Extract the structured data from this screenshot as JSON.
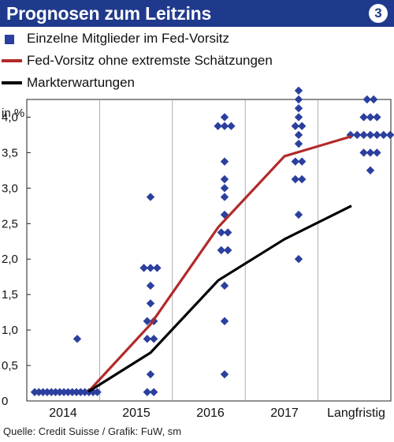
{
  "header": {
    "title": "Prognosen zum Leitzins",
    "badge": "3"
  },
  "legend": {
    "members": "Einzelne Mitglieder im Fed-Vorsitz",
    "trimmed": "Fed-Vorsitz ohne extremste Schätzungen",
    "market": "Markterwartungen"
  },
  "source": "Quelle: Credit Suisse / Grafik: FuW, sm",
  "colors": {
    "brand": "#1f3a8c",
    "dots": "#2b3f9e",
    "fed": "#b22a2a",
    "market": "#000000",
    "grid": "#999999"
  },
  "chart_data": {
    "type": "scatter",
    "title": "Prognosen zum Leitzins",
    "ylabel": "in %",
    "categories": [
      "2014",
      "2015",
      "2016",
      "2017",
      "Langfristig"
    ],
    "yticks": [
      "0",
      "0,5",
      "1,0",
      "1,5",
      "2,0",
      "2,5",
      "3,0",
      "3,5",
      "4,0"
    ],
    "ylim": [
      0,
      4.25
    ],
    "grid": "vertical",
    "series": [
      {
        "name": "Einzelne Mitglieder im Fed-Vorsitz",
        "kind": "points",
        "points": [
          {
            "category": "2014",
            "values": [
              0.125,
              0.125,
              0.125,
              0.125,
              0.125,
              0.125,
              0.125,
              0.125,
              0.125,
              0.125,
              0.125,
              0.125,
              0.125,
              0.125,
              0.125,
              0.125,
              0.875
            ]
          },
          {
            "category": "2015",
            "values": [
              0.125,
              0.375,
              0.875,
              0.875,
              1.125,
              1.125,
              1.375,
              1.625,
              1.875,
              1.875,
              1.875,
              2.875,
              0.125
            ]
          },
          {
            "category": "2016",
            "values": [
              0.375,
              1.125,
              1.625,
              2.125,
              2.125,
              2.375,
              2.375,
              2.625,
              2.875,
              3.0,
              3.125,
              3.375,
              3.875,
              3.875,
              3.875,
              4.0
            ]
          },
          {
            "category": "2017",
            "values": [
              2.0,
              2.625,
              3.125,
              3.125,
              3.375,
              3.375,
              3.625,
              3.75,
              3.875,
              3.875,
              4.0,
              4.125,
              4.25,
              4.375
            ]
          },
          {
            "category": "Langfristig",
            "values": [
              3.25,
              3.5,
              3.5,
              3.5,
              3.75,
              3.75,
              3.75,
              3.75,
              3.75,
              3.75,
              3.75,
              4.0,
              4.0,
              4.0,
              4.25,
              4.25
            ]
          }
        ]
      },
      {
        "name": "Fed-Vorsitz ohne extremste Schätzungen",
        "kind": "line",
        "x": [
          "2014",
          "2015",
          "2016",
          "2017",
          "Langfristig"
        ],
        "values": [
          0.13,
          1.08,
          2.45,
          3.45,
          3.73
        ]
      },
      {
        "name": "Markterwartungen",
        "kind": "line",
        "x": [
          "2014",
          "2015",
          "2016",
          "2017",
          "Langfristig"
        ],
        "values": [
          0.13,
          0.68,
          1.7,
          2.28,
          2.75
        ]
      }
    ]
  }
}
